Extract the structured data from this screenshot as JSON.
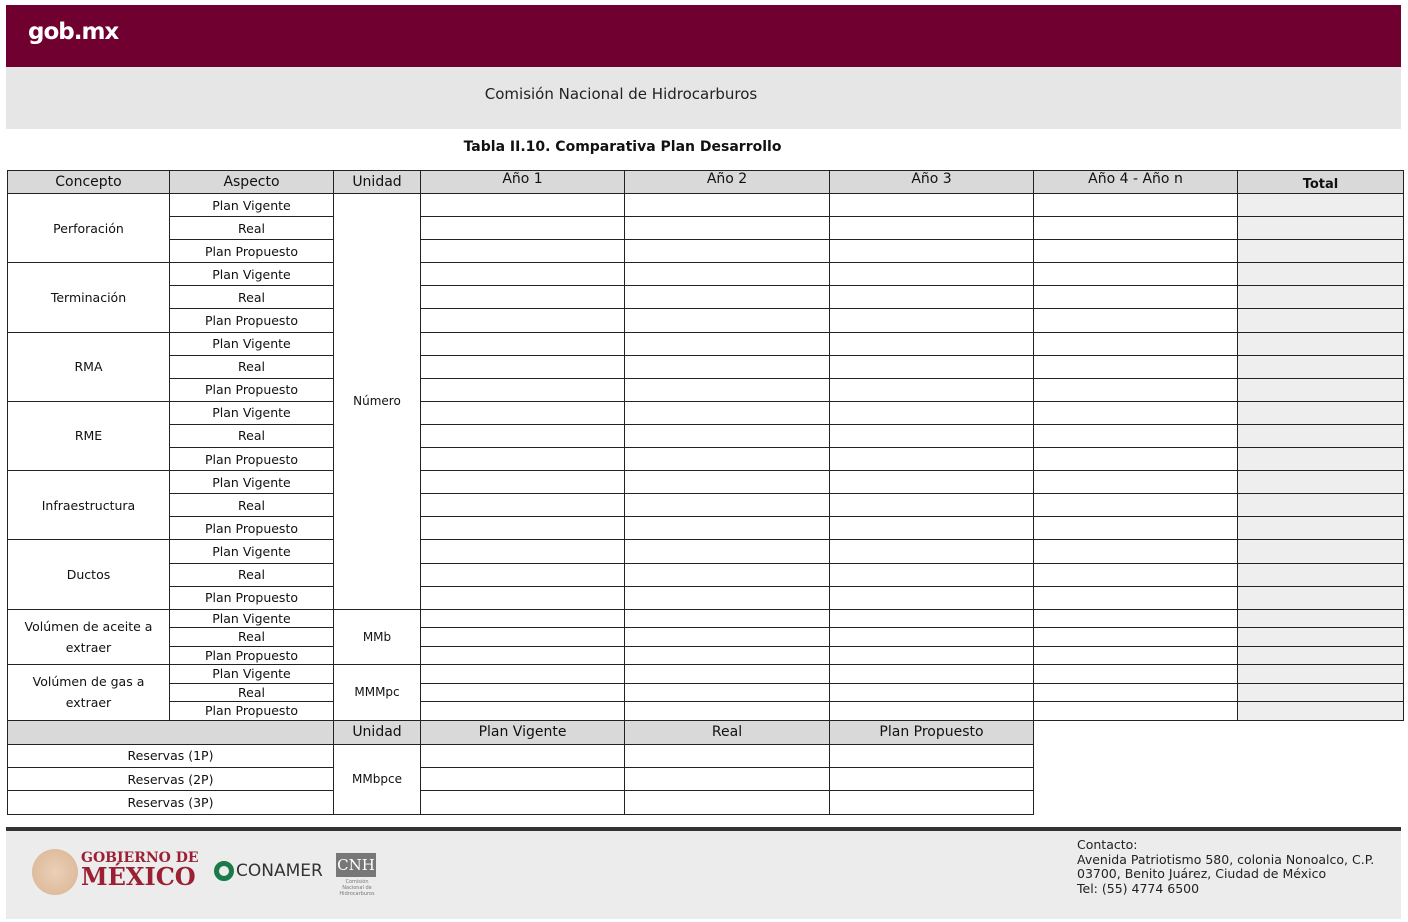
{
  "header": {
    "logo": "gob.mx",
    "agency": "Comisión Nacional de Hidrocarburos",
    "brand_color": "#6f0030"
  },
  "title": "Tabla II.10. Comparativa Plan Desarrollo",
  "table": {
    "headers": [
      "Concepto",
      "Aspecto",
      "Unidad",
      "Año 1",
      "Año 2",
      "Año 3",
      "Año 4 - Año n",
      "Total"
    ],
    "aspects": [
      "Plan Vigente",
      "Real",
      "Plan Propuesto"
    ],
    "groups": [
      {
        "concepto": "Perforación"
      },
      {
        "concepto": "Terminación"
      },
      {
        "concepto": "RMA"
      },
      {
        "concepto": "RME"
      },
      {
        "concepto": "Infraestructura"
      },
      {
        "concepto": "Ductos"
      },
      {
        "concepto": "Volúmen de aceite a extraer",
        "unidad": "MMb"
      },
      {
        "concepto": "Volúmen de gas a extraer",
        "unidad": "MMMpc"
      }
    ],
    "numero_unit": "Número",
    "reserves_headers": [
      "Unidad",
      "Plan Vigente",
      "Real",
      "Plan Propuesto"
    ],
    "reserves": [
      "Reservas (1P)",
      "Reservas (2P)",
      "Reservas (3P)"
    ],
    "reserves_unit": "MMbpce"
  },
  "footer": {
    "gob_line1": "GOBIERNO DE",
    "gob_line2": "MÉXICO",
    "conamer": "CONAMER",
    "cnh": "CNH",
    "cnh_sub": "Comisión Nacional de Hidrocarburos",
    "contact": [
      "Contacto:",
      "Avenida Patriotismo 580, colonia Nonoalco, C.P.",
      "03700, Benito Juárez, Ciudad de México",
      "Tel: (55) 4774 6500"
    ]
  }
}
